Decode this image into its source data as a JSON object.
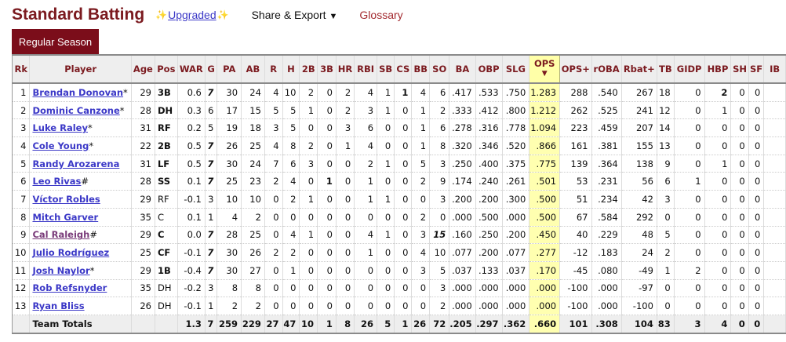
{
  "header": {
    "title": "Standard Batting",
    "upgraded_label": "Upgraded",
    "share_label": "Share & Export",
    "glossary_label": "Glossary"
  },
  "tabs": [
    {
      "label": "Regular Season",
      "active": true
    }
  ],
  "colors": {
    "title": "#7b1a1f",
    "tab_bg": "#7b0d1a",
    "link": "#3b38c7",
    "visited_link": "#7a3b7a",
    "sorted_col": "#ffffb0"
  },
  "table": {
    "sorted_column": "OPS",
    "columns": [
      "Rk",
      "Player",
      "Age",
      "Pos",
      "WAR",
      "G",
      "PA",
      "AB",
      "R",
      "H",
      "2B",
      "3B",
      "HR",
      "RBI",
      "SB",
      "CS",
      "BB",
      "SO",
      "BA",
      "OBP",
      "SLG",
      "OPS",
      "OPS+",
      "rOBA",
      "Rbat+",
      "TB",
      "GIDP",
      "HBP",
      "SH",
      "SF",
      "IB"
    ],
    "rows": [
      {
        "rk": "1",
        "player": "Brendan Donovan",
        "suffix": "*",
        "age": "29",
        "pos": "3B",
        "war": "0.6",
        "g": "7",
        "pa": "30",
        "ab": "24",
        "r": "4",
        "h": "10",
        "2b": "2",
        "3b": "0",
        "hr": "2",
        "rbi": "4",
        "sb": "1",
        "cs": "1",
        "bb": "4",
        "so": "6",
        "ba": ".417",
        "obp": ".533",
        "slg": ".750",
        "ops": "1.283",
        "opsp": "288",
        "roba": ".540",
        "rbat": "267",
        "tb": "18",
        "gidp": "0",
        "hbp": "2",
        "sh": "0",
        "sf": "0"
      },
      {
        "rk": "2",
        "player": "Dominic Canzone",
        "suffix": "*",
        "age": "28",
        "pos": "DH",
        "war": "0.3",
        "g": "6",
        "pa": "17",
        "ab": "15",
        "r": "5",
        "h": "5",
        "2b": "1",
        "3b": "0",
        "hr": "2",
        "rbi": "3",
        "sb": "1",
        "cs": "0",
        "bb": "1",
        "so": "2",
        "ba": ".333",
        "obp": ".412",
        "slg": ".800",
        "ops": "1.212",
        "opsp": "262",
        "roba": ".525",
        "rbat": "241",
        "tb": "12",
        "gidp": "0",
        "hbp": "1",
        "sh": "0",
        "sf": "0"
      },
      {
        "rk": "3",
        "player": "Luke Raley",
        "suffix": "*",
        "age": "31",
        "pos": "RF",
        "war": "0.2",
        "g": "5",
        "pa": "19",
        "ab": "18",
        "r": "3",
        "h": "5",
        "2b": "0",
        "3b": "0",
        "hr": "3",
        "rbi": "6",
        "sb": "0",
        "cs": "0",
        "bb": "1",
        "so": "6",
        "ba": ".278",
        "obp": ".316",
        "slg": ".778",
        "ops": "1.094",
        "opsp": "223",
        "roba": ".459",
        "rbat": "207",
        "tb": "14",
        "gidp": "0",
        "hbp": "0",
        "sh": "0",
        "sf": "0"
      },
      {
        "rk": "4",
        "player": "Cole Young",
        "suffix": "*",
        "age": "22",
        "pos": "2B",
        "war": "0.5",
        "g": "7",
        "pa": "26",
        "ab": "25",
        "r": "4",
        "h": "8",
        "2b": "2",
        "3b": "0",
        "hr": "1",
        "rbi": "4",
        "sb": "0",
        "cs": "0",
        "bb": "1",
        "so": "8",
        "ba": ".320",
        "obp": ".346",
        "slg": ".520",
        "ops": ".866",
        "opsp": "161",
        "roba": ".381",
        "rbat": "155",
        "tb": "13",
        "gidp": "0",
        "hbp": "0",
        "sh": "0",
        "sf": "0"
      },
      {
        "rk": "5",
        "player": "Randy Arozarena",
        "suffix": "",
        "age": "31",
        "pos": "LF",
        "war": "0.5",
        "g": "7",
        "pa": "30",
        "ab": "24",
        "r": "7",
        "h": "6",
        "2b": "3",
        "3b": "0",
        "hr": "0",
        "rbi": "2",
        "sb": "1",
        "cs": "0",
        "bb": "5",
        "so": "3",
        "ba": ".250",
        "obp": ".400",
        "slg": ".375",
        "ops": ".775",
        "opsp": "139",
        "roba": ".364",
        "rbat": "138",
        "tb": "9",
        "gidp": "0",
        "hbp": "1",
        "sh": "0",
        "sf": "0"
      },
      {
        "rk": "6",
        "player": "Leo Rivas",
        "suffix": "#",
        "age": "28",
        "pos": "SS",
        "war": "0.1",
        "g": "7",
        "pa": "25",
        "ab": "23",
        "r": "2",
        "h": "4",
        "2b": "0",
        "3b": "1",
        "hr": "0",
        "rbi": "1",
        "sb": "0",
        "cs": "0",
        "bb": "2",
        "so": "9",
        "ba": ".174",
        "obp": ".240",
        "slg": ".261",
        "ops": ".501",
        "opsp": "53",
        "roba": ".231",
        "rbat": "56",
        "tb": "6",
        "gidp": "1",
        "hbp": "0",
        "sh": "0",
        "sf": "0"
      },
      {
        "rk": "7",
        "player": "Víctor Robles",
        "suffix": "",
        "age": "29",
        "pos": "RF",
        "war": "-0.1",
        "g": "3",
        "pa": "10",
        "ab": "10",
        "r": "0",
        "h": "2",
        "2b": "1",
        "3b": "0",
        "hr": "0",
        "rbi": "1",
        "sb": "1",
        "cs": "0",
        "bb": "0",
        "so": "3",
        "ba": ".200",
        "obp": ".200",
        "slg": ".300",
        "ops": ".500",
        "opsp": "51",
        "roba": ".234",
        "rbat": "42",
        "tb": "3",
        "gidp": "0",
        "hbp": "0",
        "sh": "0",
        "sf": "0"
      },
      {
        "rk": "8",
        "player": "Mitch Garver",
        "suffix": "",
        "age": "35",
        "pos": "C",
        "war": "0.1",
        "g": "1",
        "pa": "4",
        "ab": "2",
        "r": "0",
        "h": "0",
        "2b": "0",
        "3b": "0",
        "hr": "0",
        "rbi": "0",
        "sb": "0",
        "cs": "0",
        "bb": "2",
        "so": "0",
        "ba": ".000",
        "obp": ".500",
        "slg": ".000",
        "ops": ".500",
        "opsp": "67",
        "roba": ".584",
        "rbat": "292",
        "tb": "0",
        "gidp": "0",
        "hbp": "0",
        "sh": "0",
        "sf": "0"
      },
      {
        "rk": "9",
        "player": "Cal Raleigh",
        "suffix": "#",
        "age": "29",
        "pos": "C",
        "war": "0.0",
        "g": "7",
        "pa": "28",
        "ab": "25",
        "r": "0",
        "h": "4",
        "2b": "1",
        "3b": "0",
        "hr": "0",
        "rbi": "4",
        "sb": "1",
        "cs": "0",
        "bb": "3",
        "so": "15",
        "ba": ".160",
        "obp": ".250",
        "slg": ".200",
        "ops": ".450",
        "opsp": "40",
        "roba": ".229",
        "rbat": "48",
        "tb": "5",
        "gidp": "0",
        "hbp": "0",
        "sh": "0",
        "sf": "0"
      },
      {
        "rk": "10",
        "player": "Julio Rodríguez",
        "suffix": "",
        "age": "25",
        "pos": "CF",
        "war": "-0.1",
        "g": "7",
        "pa": "30",
        "ab": "26",
        "r": "2",
        "h": "2",
        "2b": "0",
        "3b": "0",
        "hr": "0",
        "rbi": "1",
        "sb": "0",
        "cs": "0",
        "bb": "4",
        "so": "10",
        "ba": ".077",
        "obp": ".200",
        "slg": ".077",
        "ops": ".277",
        "opsp": "-12",
        "roba": ".183",
        "rbat": "24",
        "tb": "2",
        "gidp": "0",
        "hbp": "0",
        "sh": "0",
        "sf": "0"
      },
      {
        "rk": "11",
        "player": "Josh Naylor",
        "suffix": "*",
        "age": "29",
        "pos": "1B",
        "war": "-0.4",
        "g": "7",
        "pa": "30",
        "ab": "27",
        "r": "0",
        "h": "1",
        "2b": "0",
        "3b": "0",
        "hr": "0",
        "rbi": "0",
        "sb": "0",
        "cs": "0",
        "bb": "3",
        "so": "5",
        "ba": ".037",
        "obp": ".133",
        "slg": ".037",
        "ops": ".170",
        "opsp": "-45",
        "roba": ".080",
        "rbat": "-49",
        "tb": "1",
        "gidp": "2",
        "hbp": "0",
        "sh": "0",
        "sf": "0"
      },
      {
        "rk": "12",
        "player": "Rob Refsnyder",
        "suffix": "",
        "age": "35",
        "pos": "DH",
        "war": "-0.2",
        "g": "3",
        "pa": "8",
        "ab": "8",
        "r": "0",
        "h": "0",
        "2b": "0",
        "3b": "0",
        "hr": "0",
        "rbi": "0",
        "sb": "0",
        "cs": "0",
        "bb": "0",
        "so": "3",
        "ba": ".000",
        "obp": ".000",
        "slg": ".000",
        "ops": ".000",
        "opsp": "-100",
        "roba": ".000",
        "rbat": "-97",
        "tb": "0",
        "gidp": "0",
        "hbp": "0",
        "sh": "0",
        "sf": "0"
      },
      {
        "rk": "13",
        "player": "Ryan Bliss",
        "suffix": "",
        "age": "26",
        "pos": "DH",
        "war": "-0.1",
        "g": "1",
        "pa": "2",
        "ab": "2",
        "r": "0",
        "h": "0",
        "2b": "0",
        "3b": "0",
        "hr": "0",
        "rbi": "0",
        "sb": "0",
        "cs": "0",
        "bb": "0",
        "so": "2",
        "ba": ".000",
        "obp": ".000",
        "slg": ".000",
        "ops": ".000",
        "opsp": "-100",
        "roba": ".000",
        "rbat": "-100",
        "tb": "0",
        "gidp": "0",
        "hbp": "0",
        "sh": "0",
        "sf": "0"
      }
    ],
    "totals": {
      "label": "Team Totals",
      "war": "1.3",
      "g": "7",
      "pa": "259",
      "ab": "229",
      "r": "27",
      "h": "47",
      "2b": "10",
      "3b": "1",
      "hr": "8",
      "rbi": "26",
      "sb": "5",
      "cs": "1",
      "bb": "26",
      "so": "72",
      "ba": ".205",
      "obp": ".297",
      "slg": ".362",
      "ops": ".660",
      "opsp": "101",
      "roba": ".308",
      "rbat": "104",
      "tb": "83",
      "gidp": "3",
      "hbp": "4",
      "sh": "0",
      "sf": "0"
    }
  }
}
